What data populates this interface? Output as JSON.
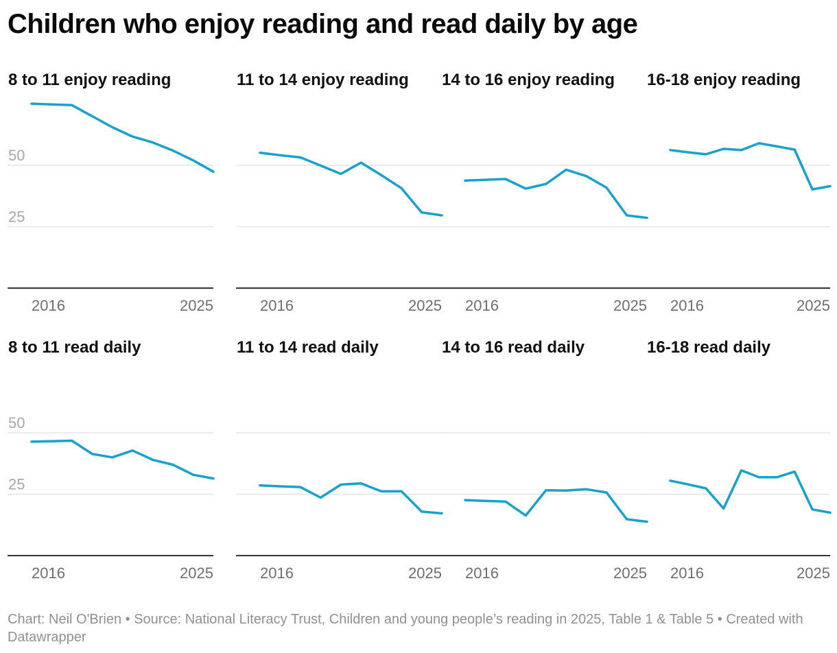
{
  "title": "Children who enjoy reading and read daily by age",
  "footer": "Chart: Neil O'Brien • Source: National Literacy Trust, Children and young people’s reading in 2025, Table 1 & Table 5 • Created with Datawrapper",
  "colors": {
    "line": "#18a1cd",
    "grid": "#e4e4e4",
    "baseline": "#333333",
    "y_tick": "#a8a8a8",
    "x_tick": "#6e6e6e"
  },
  "chart_data": [
    {
      "type": "line",
      "title": "8 to 11 enjoy reading",
      "x": [
        2016,
        2017,
        2018,
        2019,
        2020,
        2021,
        2022,
        2023,
        2024,
        2025
      ],
      "series": [
        {
          "values": [
            75.1,
            74.8,
            74.5,
            70,
            65.5,
            61.7,
            59.3,
            56,
            52,
            47.4
          ]
        }
      ],
      "ylim": [
        0,
        80
      ],
      "yticks": [
        25,
        50
      ],
      "xticks": [
        2016,
        2025
      ]
    },
    {
      "type": "line",
      "title": "11 to 14 enjoy reading",
      "x": [
        2016,
        2017,
        2018,
        2019,
        2020,
        2021,
        2022,
        2023,
        2024,
        2025
      ],
      "series": [
        {
          "values": [
            55.1,
            54.1,
            53.2,
            49.9,
            46.5,
            51.1,
            46,
            40.7,
            30.8,
            29.6
          ]
        }
      ],
      "ylim": [
        0,
        80
      ],
      "yticks": [
        25,
        50
      ],
      "xticks": [
        2016,
        2025
      ]
    },
    {
      "type": "line",
      "title": "14 to 16 enjoy reading",
      "x": [
        2016,
        2017,
        2018,
        2019,
        2020,
        2021,
        2022,
        2023,
        2024,
        2025
      ],
      "series": [
        {
          "values": [
            43.8,
            44.1,
            44.4,
            40.5,
            42.4,
            48.2,
            45.6,
            40.9,
            29.6,
            28.6
          ]
        }
      ],
      "ylim": [
        0,
        80
      ],
      "yticks": [
        25,
        50
      ],
      "xticks": [
        2016,
        2025
      ]
    },
    {
      "type": "line",
      "title": "16-18 enjoy reading",
      "x": [
        2016,
        2017,
        2018,
        2019,
        2020,
        2021,
        2022,
        2023,
        2024,
        2025
      ],
      "series": [
        {
          "values": [
            56.2,
            55.3,
            54.5,
            56.7,
            56.2,
            59,
            57.7,
            56.4,
            40.2,
            41.5
          ]
        }
      ],
      "ylim": [
        0,
        80
      ],
      "yticks": [
        25,
        50
      ],
      "xticks": [
        2016,
        2025
      ]
    },
    {
      "type": "line",
      "title": "8 to 11 read daily",
      "x": [
        2016,
        2017,
        2018,
        2019,
        2020,
        2021,
        2022,
        2023,
        2024,
        2025
      ],
      "series": [
        {
          "values": [
            46.4,
            46.6,
            46.8,
            41.4,
            40,
            42.8,
            39,
            37,
            32.9,
            31.4
          ]
        }
      ],
      "ylim": [
        0,
        80
      ],
      "yticks": [
        25,
        50
      ],
      "xticks": [
        2016,
        2025
      ]
    },
    {
      "type": "line",
      "title": "11 to 14 read daily",
      "x": [
        2016,
        2017,
        2018,
        2019,
        2020,
        2021,
        2022,
        2023,
        2024,
        2025
      ],
      "series": [
        {
          "values": [
            28.6,
            28.2,
            27.9,
            23.6,
            28.9,
            29.4,
            26.2,
            26.2,
            17.9,
            17.2
          ]
        }
      ],
      "ylim": [
        0,
        80
      ],
      "yticks": [
        25,
        50
      ],
      "xticks": [
        2016,
        2025
      ]
    },
    {
      "type": "line",
      "title": "14 to 16 read daily",
      "x": [
        2016,
        2017,
        2018,
        2019,
        2020,
        2021,
        2022,
        2023,
        2024,
        2025
      ],
      "series": [
        {
          "values": [
            22.6,
            22.3,
            22,
            16.3,
            26.6,
            26.5,
            27,
            25.7,
            14.8,
            13.8
          ]
        }
      ],
      "ylim": [
        0,
        80
      ],
      "yticks": [
        25,
        50
      ],
      "xticks": [
        2016,
        2025
      ]
    },
    {
      "type": "line",
      "title": "16-18 read daily",
      "x": [
        2016,
        2017,
        2018,
        2019,
        2020,
        2021,
        2022,
        2023,
        2024,
        2025
      ],
      "series": [
        {
          "values": [
            30.5,
            29,
            27.4,
            19.2,
            34.7,
            31.9,
            31.9,
            34.2,
            18.8,
            17.5
          ]
        }
      ],
      "ylim": [
        0,
        80
      ],
      "yticks": [
        25,
        50
      ],
      "xticks": [
        2016,
        2025
      ]
    }
  ]
}
